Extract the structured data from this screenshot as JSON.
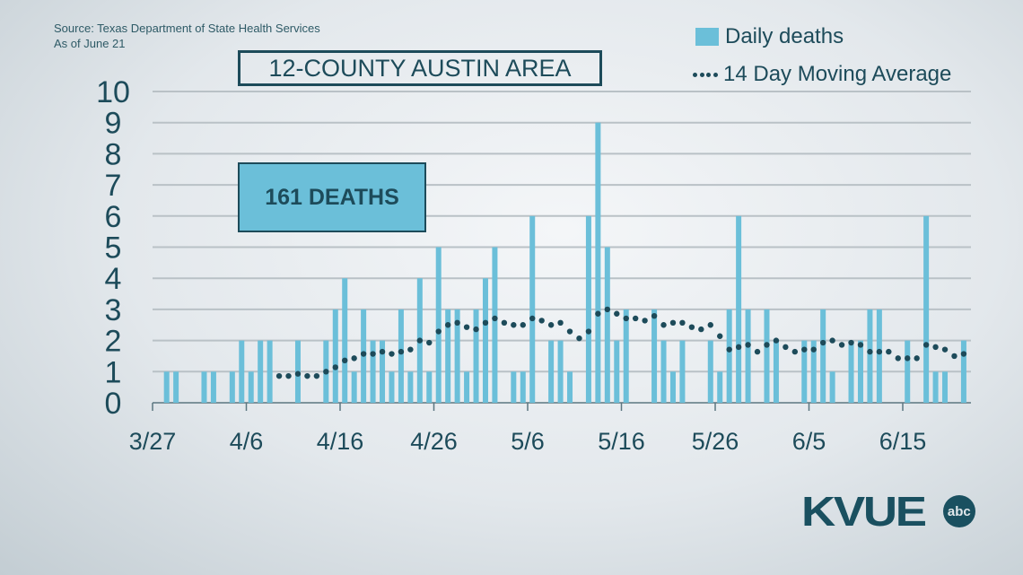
{
  "source": "Source: Texas Department of State Health Services",
  "as_of": "As of June 21",
  "callout": "161 DEATHS",
  "logo": {
    "text": "KVUE",
    "badge": "abc"
  },
  "colors": {
    "bar": "#6bbfd9",
    "average": "#1d4b5a",
    "text": "#1d4b5a",
    "grid": "#b9c1c6"
  },
  "chart_data": {
    "type": "bar",
    "title": "12-COUNTY AUSTIN AREA",
    "start_date": "3/27",
    "x_tick_labels": [
      "3/27",
      "4/6",
      "4/16",
      "4/26",
      "5/6",
      "5/16",
      "5/26",
      "6/5",
      "6/15"
    ],
    "y_tick_labels": [
      "0",
      "1",
      "2",
      "3",
      "4",
      "5",
      "6",
      "7",
      "8",
      "9",
      "10"
    ],
    "ylim": [
      0,
      10
    ],
    "grid": true,
    "legend_placement": "top-right",
    "series": [
      {
        "name": "Daily deaths",
        "type": "bar",
        "values": [
          0,
          1,
          1,
          0,
          0,
          1,
          1,
          0,
          1,
          2,
          1,
          2,
          2,
          0,
          0,
          2,
          0,
          0,
          2,
          3,
          4,
          1,
          3,
          2,
          2,
          1,
          3,
          1,
          4,
          1,
          5,
          3,
          3,
          1,
          3,
          4,
          5,
          0,
          1,
          1,
          6,
          0,
          2,
          2,
          1,
          0,
          6,
          9,
          5,
          2,
          3,
          0,
          0,
          3,
          2,
          1,
          2,
          0,
          0,
          2,
          1,
          3,
          6,
          3,
          0,
          3,
          2,
          0,
          0,
          2,
          2,
          3,
          1,
          0,
          2,
          2,
          3,
          3,
          0,
          0,
          2,
          0,
          6,
          1,
          1,
          0,
          2
        ]
      },
      {
        "name": "14 Day Moving Average",
        "type": "dotted-line",
        "start_index": 13,
        "values": [
          0.86,
          0.86,
          0.93,
          0.86,
          0.86,
          1.0,
          1.14,
          1.36,
          1.43,
          1.57,
          1.57,
          1.64,
          1.57,
          1.64,
          1.71,
          2.0,
          1.93,
          2.29,
          2.5,
          2.57,
          2.43,
          2.36,
          2.57,
          2.71,
          2.57,
          2.5,
          2.5,
          2.71,
          2.64,
          2.5,
          2.57,
          2.29,
          2.07,
          2.29,
          2.86,
          3.0,
          2.86,
          2.71,
          2.71,
          2.64,
          2.79,
          2.5,
          2.57,
          2.57,
          2.43,
          2.36,
          2.5,
          2.14,
          1.71,
          1.79,
          1.86,
          1.64,
          1.86,
          2.0,
          1.79,
          1.64,
          1.71,
          1.71,
          1.93,
          2.0,
          1.86,
          1.93,
          1.86,
          1.64,
          1.64,
          1.64,
          1.43,
          1.43,
          1.43,
          1.86,
          1.79,
          1.71,
          1.5,
          1.57
        ]
      }
    ]
  }
}
